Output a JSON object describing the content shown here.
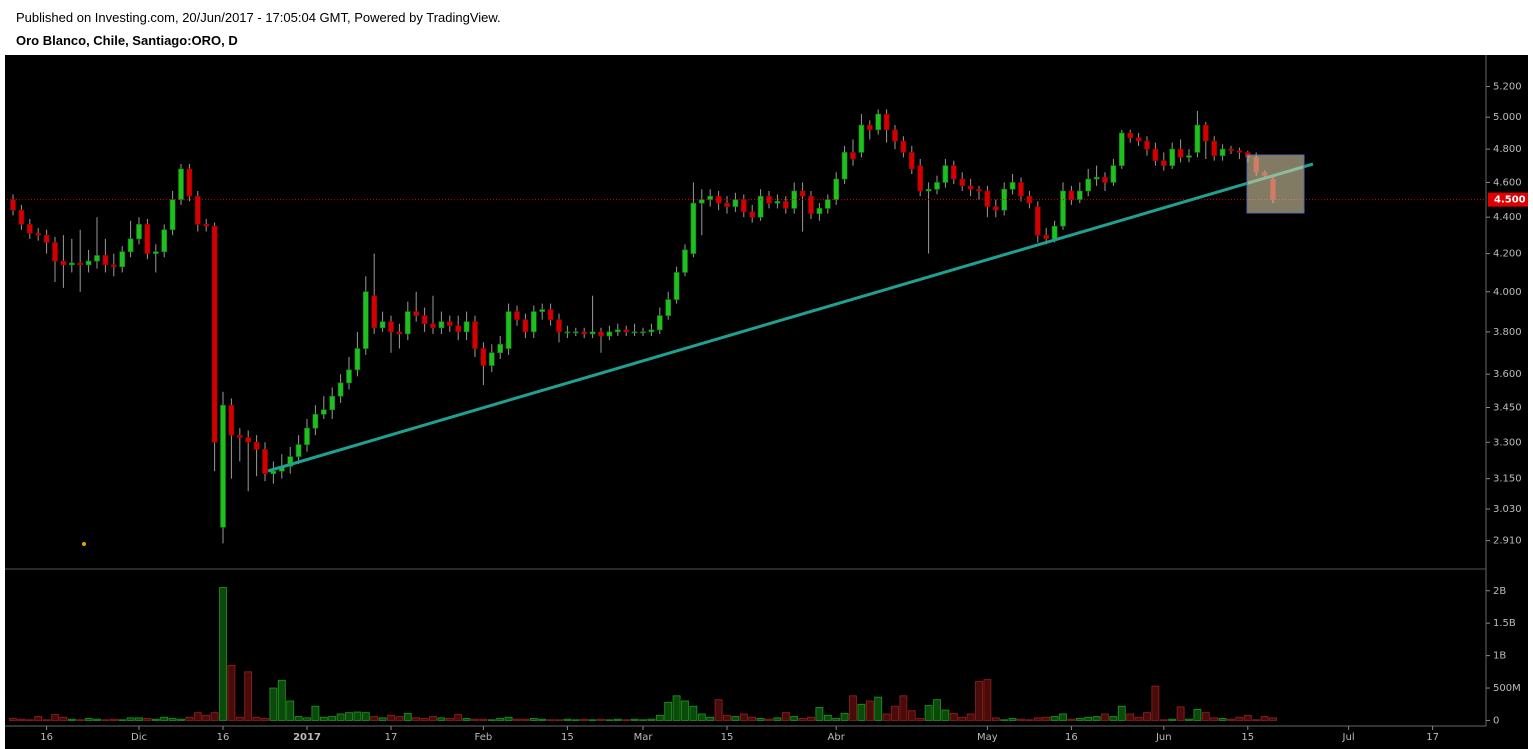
{
  "chart_data": {
    "type": "candlestick",
    "subtitle": "Published on Investing.com, 20/Jun/2017 - 17:05:04 GMT, Powered by TradingView.",
    "title": "Oro Blanco, Chile, Santiago:ORO, D",
    "categories": [
      null,
      null,
      null,
      null,
      "16",
      null,
      null,
      null,
      null,
      null,
      null,
      null,
      null,
      null,
      null,
      "Dic",
      null,
      null,
      null,
      null,
      null,
      null,
      null,
      null,
      null,
      "16",
      null,
      null,
      null,
      null,
      null,
      null,
      null,
      null,
      null,
      "2017",
      null,
      null,
      null,
      null,
      null,
      null,
      null,
      null,
      null,
      "17",
      null,
      null,
      null,
      null,
      null,
      null,
      null,
      null,
      null,
      null,
      "Feb",
      null,
      null,
      null,
      null,
      null,
      null,
      null,
      null,
      null,
      "15",
      null,
      null,
      null,
      null,
      null,
      null,
      null,
      null,
      "Mar",
      null,
      null,
      null,
      null,
      null,
      null,
      null,
      null,
      null,
      "15",
      null,
      null,
      null,
      null,
      null,
      null,
      null,
      null,
      null,
      null,
      null,
      null,
      "Abr",
      null,
      null,
      null,
      null,
      null,
      null,
      null,
      null,
      null,
      null,
      null,
      null,
      null,
      null,
      null,
      null,
      null,
      "May",
      null,
      null,
      null,
      null,
      null,
      null,
      null,
      null,
      null,
      "16",
      null,
      null,
      null,
      null,
      null,
      null,
      null,
      null,
      null,
      null,
      "Jun",
      null,
      null,
      null,
      null,
      null,
      null,
      null,
      null,
      null,
      "15",
      null,
      null,
      null,
      null,
      null,
      null,
      null,
      null,
      null,
      null,
      null,
      "Jul",
      null,
      null,
      null,
      null,
      null,
      null,
      null,
      null,
      null,
      "17",
      null,
      null,
      null,
      null,
      null
    ],
    "open": [
      4.5,
      4.44,
      4.36,
      4.31,
      4.3,
      4.26,
      4.16,
      4.14,
      4.15,
      4.14,
      4.16,
      4.19,
      4.14,
      4.13,
      4.21,
      4.28,
      4.36,
      4.2,
      4.21,
      4.33,
      4.5,
      4.68,
      4.52,
      4.36,
      4.35,
      2.96,
      3.46,
      3.33,
      3.32,
      3.3,
      3.27,
      3.17,
      3.18,
      3.2,
      3.24,
      3.29,
      3.36,
      3.42,
      3.44,
      3.5,
      3.56,
      3.62,
      3.72,
      3.98,
      3.82,
      3.85,
      3.8,
      3.79,
      3.9,
      3.88,
      3.84,
      3.82,
      3.85,
      3.83,
      3.8,
      3.85,
      3.72,
      3.64,
      3.7,
      3.72,
      3.9,
      3.86,
      3.8,
      3.9,
      3.91,
      3.86,
      3.8,
      3.8,
      3.8,
      3.79,
      3.8,
      3.78,
      3.8,
      3.81,
      3.8,
      3.8,
      3.8,
      3.81,
      3.88,
      3.96,
      4.1,
      4.2,
      4.48,
      4.5,
      4.52,
      4.48,
      4.46,
      4.5,
      4.43,
      4.4,
      4.52,
      4.48,
      4.49,
      4.45,
      4.55,
      4.52,
      4.42,
      4.45,
      4.5,
      4.62,
      4.78,
      4.78,
      4.95,
      4.92,
      5.02,
      4.92,
      4.85,
      4.78,
      4.7,
      4.55,
      4.56,
      4.6,
      4.7,
      4.62,
      4.58,
      4.56,
      4.55,
      4.46,
      4.44,
      4.56,
      4.6,
      4.52,
      4.46,
      4.3,
      4.28,
      4.35,
      4.55,
      4.5,
      4.55,
      4.62,
      4.63,
      4.6,
      4.7,
      4.9,
      4.87,
      4.85,
      4.8,
      4.73,
      4.7,
      4.8,
      4.75,
      4.78,
      4.95,
      4.85,
      4.76,
      4.8,
      4.79,
      4.78,
      4.75,
      4.66,
      4.62,
      null,
      null,
      null,
      null,
      null,
      null,
      null,
      null,
      null,
      null,
      null,
      null,
      null,
      null,
      null,
      null,
      null,
      null,
      null,
      null,
      null,
      null,
      null,
      null
    ],
    "high": [
      4.53,
      4.47,
      4.39,
      4.34,
      4.33,
      4.29,
      4.3,
      4.28,
      4.33,
      4.22,
      4.4,
      4.28,
      4.2,
      4.24,
      4.38,
      4.4,
      4.39,
      4.25,
      4.36,
      4.55,
      4.71,
      4.71,
      4.55,
      4.39,
      4.37,
      3.52,
      3.49,
      3.36,
      3.35,
      3.33,
      3.3,
      3.22,
      3.25,
      3.28,
      3.33,
      3.4,
      3.46,
      3.5,
      3.54,
      3.6,
      3.68,
      3.8,
      4.08,
      4.2,
      3.9,
      3.88,
      3.84,
      3.95,
      4.0,
      3.92,
      3.98,
      3.9,
      3.88,
      3.88,
      3.9,
      3.88,
      3.75,
      3.74,
      3.78,
      3.94,
      3.93,
      3.89,
      3.93,
      3.94,
      3.94,
      3.89,
      3.83,
      3.82,
      3.82,
      3.98,
      3.82,
      3.83,
      3.84,
      3.83,
      3.84,
      3.82,
      3.84,
      3.92,
      4.0,
      4.13,
      4.25,
      4.6,
      4.56,
      4.56,
      4.55,
      4.52,
      4.54,
      4.53,
      4.47,
      4.56,
      4.55,
      4.53,
      4.52,
      4.6,
      4.6,
      4.55,
      4.48,
      4.53,
      4.66,
      4.82,
      4.86,
      5.02,
      4.98,
      5.05,
      5.05,
      4.95,
      4.88,
      4.82,
      4.74,
      4.6,
      4.64,
      4.74,
      4.73,
      4.66,
      4.62,
      4.58,
      4.58,
      4.5,
      4.6,
      4.65,
      4.63,
      4.55,
      4.49,
      4.34,
      4.38,
      4.6,
      4.58,
      4.6,
      4.68,
      4.7,
      4.66,
      4.74,
      4.92,
      4.92,
      4.9,
      4.88,
      4.84,
      4.78,
      4.84,
      4.86,
      4.8,
      5.04,
      4.97,
      4.88,
      4.83,
      4.82,
      4.81,
      4.79,
      4.78,
      4.67,
      4.64,
      null,
      null,
      null,
      null,
      null,
      null,
      null,
      null,
      null,
      null,
      null,
      null,
      null,
      null,
      null,
      null,
      null,
      null,
      null,
      null,
      null,
      null,
      null,
      null
    ],
    "low": [
      4.41,
      4.33,
      4.28,
      4.27,
      4.2,
      4.05,
      4.02,
      4.1,
      4.0,
      4.1,
      4.12,
      4.1,
      4.08,
      4.1,
      4.18,
      4.25,
      4.17,
      4.1,
      4.18,
      4.3,
      4.47,
      4.49,
      4.32,
      4.32,
      3.18,
      2.9,
      3.15,
      3.22,
      3.1,
      3.16,
      3.14,
      3.13,
      3.15,
      3.17,
      3.21,
      3.26,
      3.33,
      3.4,
      3.4,
      3.47,
      3.53,
      3.59,
      3.69,
      3.79,
      3.8,
      3.7,
      3.72,
      3.76,
      3.85,
      3.8,
      3.79,
      3.79,
      3.8,
      3.76,
      3.76,
      3.68,
      3.55,
      3.61,
      3.67,
      3.69,
      3.83,
      3.77,
      3.77,
      3.86,
      3.83,
      3.75,
      3.77,
      3.78,
      3.77,
      3.77,
      3.7,
      3.76,
      3.78,
      3.78,
      3.78,
      3.78,
      3.78,
      3.79,
      3.86,
      3.94,
      4.08,
      4.18,
      4.3,
      4.46,
      4.44,
      4.42,
      4.43,
      4.4,
      4.37,
      4.38,
      4.45,
      4.45,
      4.42,
      4.42,
      4.32,
      4.39,
      4.38,
      4.42,
      4.47,
      4.59,
      4.7,
      4.75,
      4.86,
      4.89,
      4.84,
      4.8,
      4.75,
      4.65,
      4.52,
      4.2,
      4.53,
      4.57,
      4.59,
      4.55,
      4.52,
      4.5,
      4.4,
      4.4,
      4.41,
      4.53,
      4.49,
      4.45,
      4.26,
      4.25,
      4.26,
      4.33,
      4.47,
      4.48,
      4.52,
      4.58,
      4.55,
      4.58,
      4.68,
      4.84,
      4.82,
      4.76,
      4.7,
      4.67,
      4.68,
      4.72,
      4.72,
      4.75,
      4.74,
      4.73,
      4.73,
      4.77,
      4.74,
      4.72,
      4.64,
      4.62,
      4.48,
      null,
      null,
      null,
      null,
      null,
      null,
      null,
      null,
      null,
      null,
      null,
      null,
      null,
      null,
      null,
      null,
      null,
      null,
      null,
      null,
      null,
      null,
      null,
      null
    ],
    "close": [
      4.44,
      4.36,
      4.31,
      4.3,
      4.26,
      4.16,
      4.14,
      4.15,
      4.14,
      4.16,
      4.19,
      4.14,
      4.13,
      4.21,
      4.28,
      4.36,
      4.2,
      4.21,
      4.33,
      4.5,
      4.68,
      4.52,
      4.36,
      4.35,
      3.3,
      3.46,
      3.33,
      3.32,
      3.3,
      3.27,
      3.17,
      3.18,
      3.2,
      3.24,
      3.29,
      3.36,
      3.42,
      3.44,
      3.5,
      3.56,
      3.62,
      3.72,
      4.0,
      3.82,
      3.85,
      3.8,
      3.79,
      3.9,
      3.88,
      3.84,
      3.82,
      3.85,
      3.83,
      3.8,
      3.85,
      3.72,
      3.64,
      3.7,
      3.74,
      3.9,
      3.86,
      3.8,
      3.9,
      3.91,
      3.86,
      3.8,
      3.8,
      3.8,
      3.79,
      3.8,
      3.78,
      3.8,
      3.81,
      3.8,
      3.8,
      3.8,
      3.81,
      3.88,
      3.96,
      4.1,
      4.22,
      4.48,
      4.5,
      4.52,
      4.48,
      4.46,
      4.5,
      4.43,
      4.4,
      4.52,
      4.48,
      4.49,
      4.45,
      4.55,
      4.52,
      4.42,
      4.45,
      4.5,
      4.62,
      4.78,
      4.74,
      4.95,
      4.92,
      5.02,
      4.92,
      4.85,
      4.78,
      4.68,
      4.55,
      4.56,
      4.6,
      4.7,
      4.62,
      4.58,
      4.56,
      4.55,
      4.46,
      4.44,
      4.56,
      4.6,
      4.52,
      4.48,
      4.3,
      4.28,
      4.35,
      4.55,
      4.5,
      4.55,
      4.62,
      4.63,
      4.6,
      4.7,
      4.9,
      4.87,
      4.85,
      4.8,
      4.73,
      4.7,
      4.8,
      4.75,
      4.76,
      4.95,
      4.85,
      4.76,
      4.8,
      4.79,
      4.78,
      4.75,
      4.66,
      4.64,
      4.5,
      null,
      null,
      null,
      null,
      null,
      null,
      null,
      null,
      null,
      null,
      null,
      null,
      null,
      null,
      null,
      null,
      null,
      null,
      null,
      null,
      null,
      null,
      null,
      null
    ],
    "volume": [
      30000000.0,
      20000000.0,
      10000000.0,
      60000000.0,
      10000000.0,
      90000000.0,
      50000000.0,
      20000000.0,
      10000000.0,
      30000000.0,
      20000000.0,
      10000000.0,
      20000000.0,
      10000000.0,
      40000000.0,
      40000000.0,
      30000000.0,
      20000000.0,
      50000000.0,
      30000000.0,
      20000000.0,
      50000000.0,
      120000000.0,
      80000000.0,
      120000000.0,
      2050000000.0,
      850000000.0,
      50000000.0,
      750000000.0,
      50000000.0,
      30000000.0,
      500000000.0,
      620000000.0,
      300000000.0,
      60000000.0,
      40000000.0,
      220000000.0,
      50000000.0,
      60000000.0,
      100000000.0,
      120000000.0,
      130000000.0,
      120000000.0,
      60000000.0,
      40000000.0,
      80000000.0,
      60000000.0,
      110000000.0,
      40000000.0,
      30000000.0,
      60000000.0,
      40000000.0,
      30000000.0,
      90000000.0,
      30000000.0,
      20000000.0,
      20000000.0,
      10000000.0,
      30000000.0,
      50000000.0,
      20000000.0,
      20000000.0,
      30000000.0,
      20000000.0,
      10000000.0,
      10000000.0,
      20000000.0,
      10000000.0,
      20000000.0,
      10000000.0,
      20000000.0,
      10000000.0,
      20000000.0,
      10000000.0,
      20000000.0,
      10000000.0,
      20000000.0,
      80000000.0,
      280000000.0,
      380000000.0,
      300000000.0,
      220000000.0,
      100000000.0,
      50000000.0,
      320000000.0,
      80000000.0,
      60000000.0,
      100000000.0,
      50000000.0,
      30000000.0,
      20000000.0,
      40000000.0,
      120000000.0,
      60000000.0,
      30000000.0,
      50000000.0,
      200000000.0,
      80000000.0,
      30000000.0,
      110000000.0,
      380000000.0,
      250000000.0,
      300000000.0,
      360000000.0,
      100000000.0,
      220000000.0,
      380000000.0,
      150000000.0,
      30000000.0,
      230000000.0,
      320000000.0,
      160000000.0,
      110000000.0,
      50000000.0,
      100000000.0,
      600000000.0,
      630000000.0,
      40000000.0,
      10000000.0,
      30000000.0,
      20000000.0,
      10000000.0,
      40000000.0,
      50000000.0,
      60000000.0,
      100000000.0,
      20000000.0,
      30000000.0,
      50000000.0,
      60000000.0,
      100000000.0,
      60000000.0,
      220000000.0,
      100000000.0,
      50000000.0,
      120000000.0,
      530000000.0,
      10000000.0,
      20000000.0,
      210000000.0,
      20000000.0,
      170000000.0,
      120000000.0,
      40000000.0,
      30000000.0,
      20000000.0,
      50000000.0,
      80000000.0,
      10000000.0,
      60000000.0,
      40000000.0,
      null,
      null,
      null,
      null,
      null,
      null,
      null,
      null,
      null,
      null,
      null,
      null,
      null,
      null,
      null,
      null,
      null,
      null,
      null,
      null,
      null,
      null,
      null,
      null
    ],
    "ylim": [
      2.81,
      5.4
    ],
    "log_scale": true,
    "yticks": [
      {
        "value": 2.91,
        "label": "2.910"
      },
      {
        "value": 3.03,
        "label": "3.030"
      },
      {
        "value": 3.15,
        "label": "3.150"
      },
      {
        "value": 3.3,
        "label": "3.300"
      },
      {
        "value": 3.45,
        "label": "3.450"
      },
      {
        "value": 3.6,
        "label": "3.600"
      },
      {
        "value": 3.8,
        "label": "3.800"
      },
      {
        "value": 4.0,
        "label": "4.000"
      },
      {
        "value": 4.2,
        "label": "4.200"
      },
      {
        "value": 4.4,
        "label": "4.400"
      },
      {
        "value": 4.6,
        "label": "4.600"
      },
      {
        "value": 4.8,
        "label": "4.800"
      },
      {
        "value": 5.0,
        "label": "5.000"
      },
      {
        "value": 5.2,
        "label": "5.200"
      }
    ],
    "volume_ylim": [
      -70000000.0,
      2320000000.0
    ],
    "volume_yticks": [
      0,
      {
        "value": 500000000.0,
        "label": "500M"
      },
      {
        "value": 1000000000.0,
        "label": "1B"
      },
      {
        "value": 1500000000.0,
        "label": "1.5B"
      },
      {
        "value": 2000000000.0,
        "label": "2B"
      }
    ],
    "last_price": {
      "value": 4.5,
      "label": "4.500"
    },
    "up_color": "#1fbf1f",
    "down_color": "#d40000"
  }
}
